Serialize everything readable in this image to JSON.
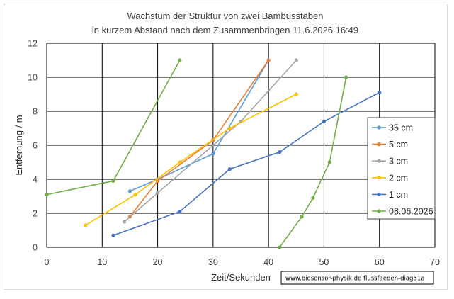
{
  "chart_data": {
    "type": "scatter",
    "title": "Wachstum der Struktur von zwei Bambusstäben",
    "subtitle": "in kurzem Abstand nach dem Zusammenbringen   11.6.2026 16:49",
    "xlabel": "Zeit/Sekunden",
    "ylabel": "Entfernung / m",
    "xlim": [
      0,
      70
    ],
    "ylim": [
      0,
      12
    ],
    "xticks": [
      0,
      10,
      20,
      30,
      40,
      50,
      60,
      70
    ],
    "yticks": [
      0,
      2,
      4,
      6,
      8,
      10,
      12
    ],
    "grid": true,
    "legend_position": "right",
    "annotation": "www.biosensor-physik.de  flussfaeden-diag51a",
    "series": [
      {
        "name": "35 cm",
        "color": "#5b9bd5",
        "x": [
          15,
          20,
          30,
          40
        ],
        "y": [
          3.3,
          4.0,
          5.5,
          11.0
        ]
      },
      {
        "name": "5 cm",
        "color": "#ed7d31",
        "x": [
          15,
          20,
          30,
          40
        ],
        "y": [
          1.8,
          3.9,
          6.3,
          11.0
        ]
      },
      {
        "name": "3 cm",
        "color": "#a5a5a5",
        "x": [
          14,
          20,
          35,
          45
        ],
        "y": [
          1.5,
          3.2,
          7.4,
          11.0
        ]
      },
      {
        "name": "2 cm",
        "color": "#ffc000",
        "x": [
          7,
          16,
          24,
          33,
          45
        ],
        "y": [
          1.3,
          3.1,
          5.0,
          7.0,
          9.0
        ]
      },
      {
        "name": "1 cm",
        "color": "#4472c4",
        "x": [
          12,
          24,
          33,
          42,
          50,
          60
        ],
        "y": [
          0.7,
          2.1,
          4.6,
          5.6,
          7.4,
          9.1
        ]
      },
      {
        "name": "08.06.2026",
        "color": "#70ad47",
        "x": [
          0,
          12,
          24
        ],
        "y": [
          3.1,
          3.9,
          11.0
        ]
      },
      {
        "name": "",
        "color": "#70ad47",
        "x": [
          42,
          46,
          48,
          51,
          54
        ],
        "y": [
          0.0,
          1.8,
          2.9,
          5.0,
          10.0
        ]
      }
    ]
  }
}
